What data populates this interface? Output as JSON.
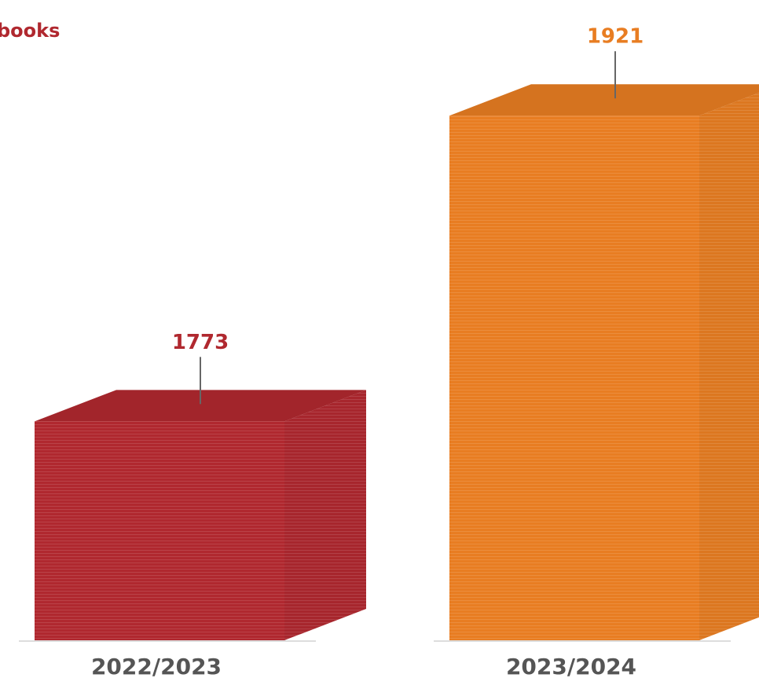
{
  "chart_data": {
    "type": "bar3d",
    "title": "books",
    "categories": [
      "2022/2023",
      "2023/2024"
    ],
    "values": [
      1773,
      1921
    ],
    "colors": [
      "#b0282f",
      "#e87d22"
    ],
    "ylim": [
      1667,
      1977
    ]
  }
}
